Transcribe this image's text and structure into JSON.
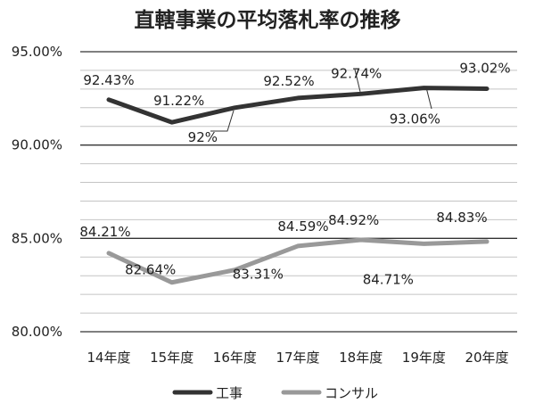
{
  "chart_data": {
    "type": "line",
    "title": "直轄事業の平均落札率の推移",
    "categories": [
      "14年度",
      "15年度",
      "16年度",
      "17年度",
      "18年度",
      "19年度",
      "20年度"
    ],
    "ylim": [
      80,
      95
    ],
    "y_ticks": [
      "80.00%",
      "85.00%",
      "90.00%",
      "95.00%"
    ],
    "grid": true,
    "legend_position": "bottom",
    "series": [
      {
        "name": "工事",
        "color": "#333333",
        "values": [
          92.43,
          91.22,
          92.0,
          92.52,
          92.74,
          93.06,
          93.02
        ],
        "labels": [
          "92.43%",
          "91.22%",
          "92%",
          "92.52%",
          "92.74%",
          "93.06%",
          "93.02%"
        ]
      },
      {
        "name": "コンサル",
        "color": "#999999",
        "values": [
          84.21,
          82.64,
          83.31,
          84.59,
          84.92,
          84.71,
          84.83
        ],
        "labels": [
          "84.21%",
          "82.64%",
          "83.31%",
          "84.59%",
          "84.92%",
          "84.71%",
          "84.83%"
        ]
      }
    ]
  }
}
